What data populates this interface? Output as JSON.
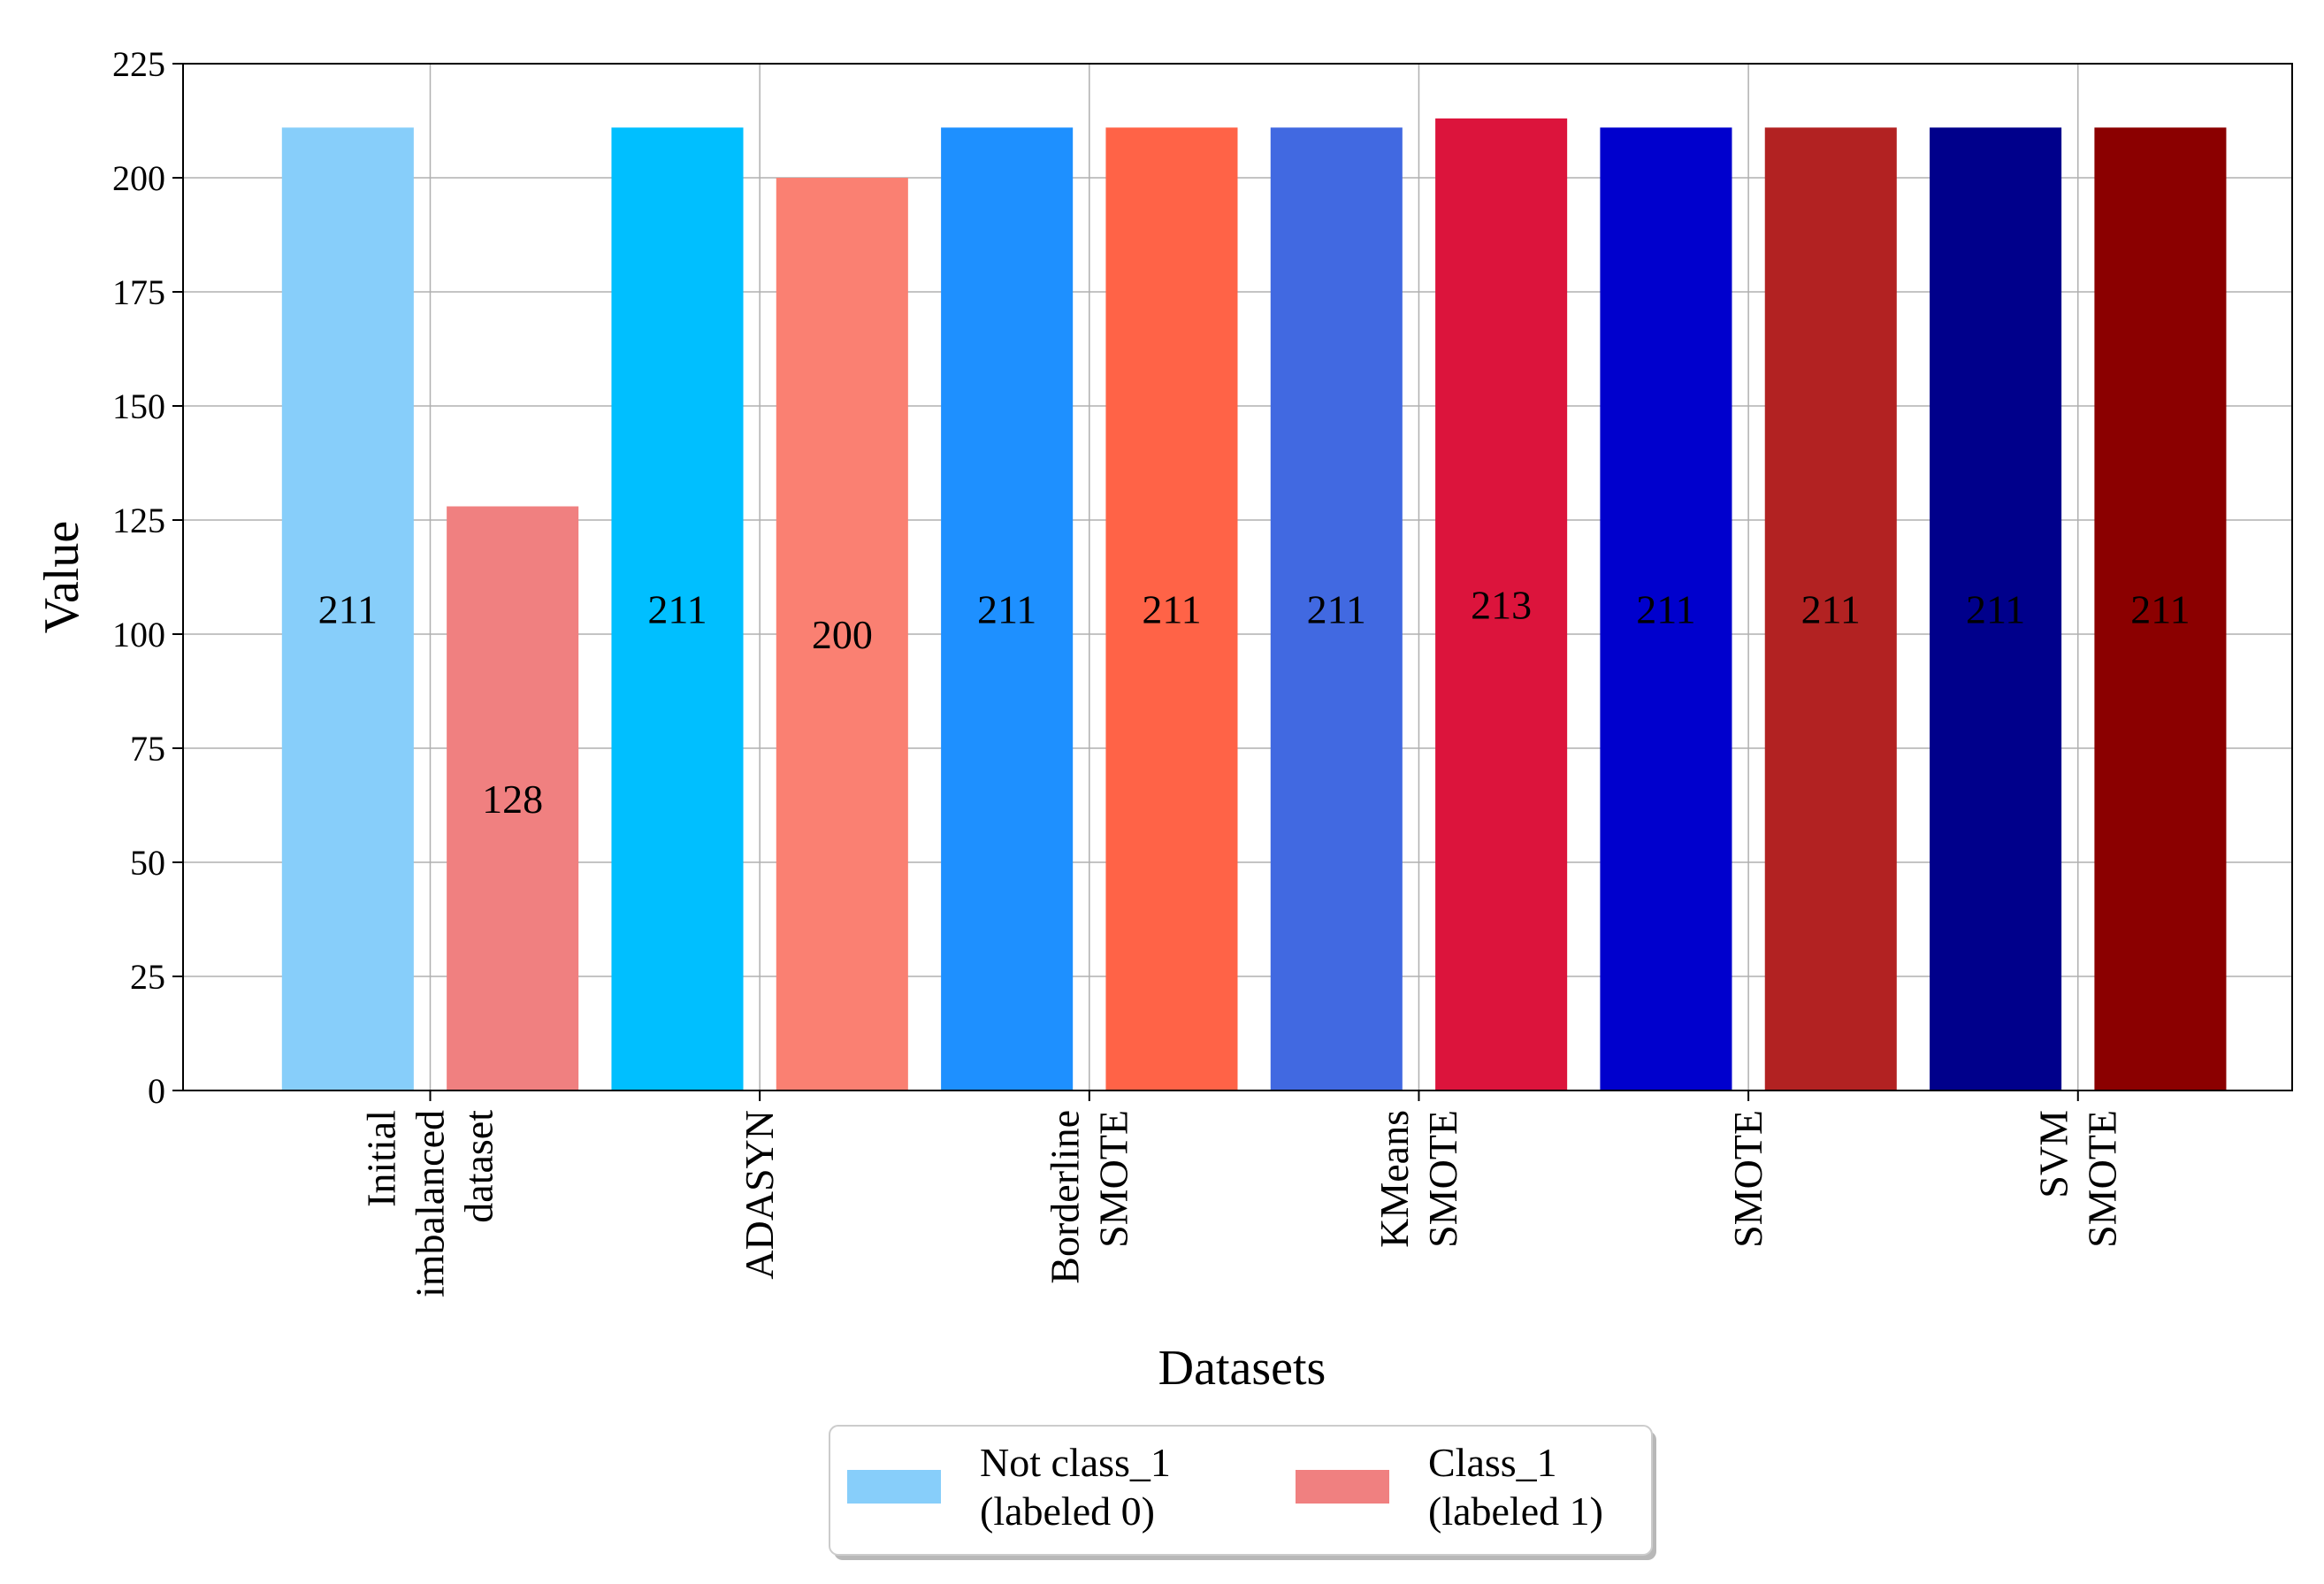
{
  "chart_data": {
    "type": "bar",
    "title": "",
    "xlabel": "Datasets",
    "ylabel": "Value",
    "ylim": [
      0,
      225
    ],
    "yticks": [
      0,
      25,
      50,
      75,
      100,
      125,
      150,
      175,
      200,
      225
    ],
    "grid": true,
    "categories": [
      [
        "Initial",
        "imbalanced",
        "dataset"
      ],
      [
        "ADASYN"
      ],
      [
        "Borderline",
        "SMOTE"
      ],
      [
        "KMeans",
        "SMOTE"
      ],
      [
        "SMOTE"
      ],
      [
        "SVM",
        "SMOTE"
      ]
    ],
    "series": [
      {
        "name": "Not class_1 (labeled 0)",
        "values": [
          211,
          211,
          211,
          211,
          211,
          211
        ],
        "colors": [
          "#87cefa",
          "#00bfff",
          "#1e90ff",
          "#4169e1",
          "#0000cd",
          "#00008b"
        ]
      },
      {
        "name": "Class_1 (labeled 1)",
        "values": [
          128,
          200,
          211,
          213,
          211,
          211
        ],
        "colors": [
          "#f08080",
          "#fa8072",
          "#ff6347",
          "#dc143c",
          "#b22222",
          "#8b0000"
        ]
      }
    ],
    "legend": {
      "position": "bottom-center",
      "entries": [
        {
          "lines": [
            "Not class_1",
            "(labeled 0)"
          ],
          "color": "#87cefa"
        },
        {
          "lines": [
            "Class_1",
            "(labeled 1)"
          ],
          "color": "#f08080"
        }
      ]
    }
  }
}
